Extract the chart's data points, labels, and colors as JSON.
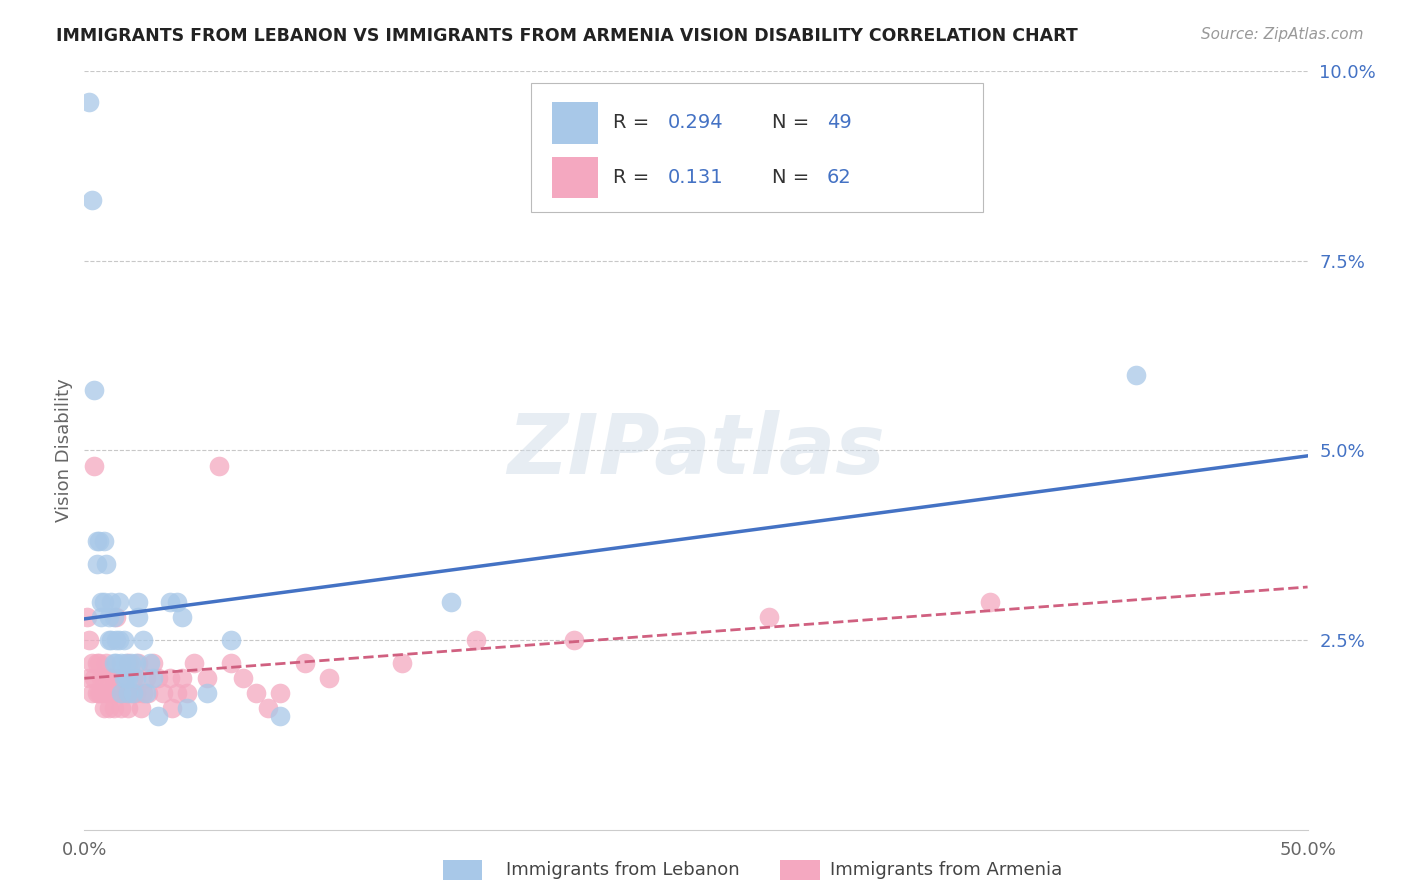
{
  "title": "IMMIGRANTS FROM LEBANON VS IMMIGRANTS FROM ARMENIA VISION DISABILITY CORRELATION CHART",
  "source": "Source: ZipAtlas.com",
  "ylabel": "Vision Disability",
  "xlabel": "",
  "legend_bottom": [
    "Immigrants from Lebanon",
    "Immigrants from Armenia"
  ],
  "R_lebanon": 0.294,
  "N_lebanon": 49,
  "R_armenia": 0.131,
  "N_armenia": 62,
  "xlim": [
    0.0,
    0.5
  ],
  "ylim": [
    0.0,
    0.1
  ],
  "x_ticks": [
    0.0,
    0.1,
    0.2,
    0.3,
    0.4,
    0.5
  ],
  "x_tick_labels": [
    "0.0%",
    "",
    "",
    "",
    "",
    "50.0%"
  ],
  "y_ticks": [
    0.0,
    0.025,
    0.05,
    0.075,
    0.1
  ],
  "y_tick_labels_right": [
    "",
    "2.5%",
    "5.0%",
    "7.5%",
    "10.0%"
  ],
  "color_lebanon": "#a8c8e8",
  "color_armenia": "#f4a8c0",
  "line_color_lebanon": "#4472c4",
  "line_color_armenia": "#d06080",
  "watermark": "ZIPatlas",
  "background_color": "#ffffff",
  "lebanon_scatter": [
    [
      0.002,
      0.096
    ],
    [
      0.003,
      0.083
    ],
    [
      0.004,
      0.058
    ],
    [
      0.005,
      0.038
    ],
    [
      0.005,
      0.035
    ],
    [
      0.006,
      0.038
    ],
    [
      0.007,
      0.03
    ],
    [
      0.007,
      0.028
    ],
    [
      0.008,
      0.03
    ],
    [
      0.008,
      0.038
    ],
    [
      0.009,
      0.035
    ],
    [
      0.01,
      0.025
    ],
    [
      0.01,
      0.028
    ],
    [
      0.011,
      0.03
    ],
    [
      0.011,
      0.025
    ],
    [
      0.012,
      0.022
    ],
    [
      0.012,
      0.028
    ],
    [
      0.013,
      0.025
    ],
    [
      0.013,
      0.022
    ],
    [
      0.014,
      0.025
    ],
    [
      0.014,
      0.03
    ],
    [
      0.015,
      0.022
    ],
    [
      0.015,
      0.018
    ],
    [
      0.016,
      0.02
    ],
    [
      0.016,
      0.025
    ],
    [
      0.017,
      0.022
    ],
    [
      0.017,
      0.02
    ],
    [
      0.018,
      0.018
    ],
    [
      0.018,
      0.02
    ],
    [
      0.019,
      0.022
    ],
    [
      0.02,
      0.018
    ],
    [
      0.021,
      0.02
    ],
    [
      0.021,
      0.022
    ],
    [
      0.022,
      0.03
    ],
    [
      0.022,
      0.028
    ],
    [
      0.024,
      0.025
    ],
    [
      0.025,
      0.018
    ],
    [
      0.027,
      0.022
    ],
    [
      0.028,
      0.02
    ],
    [
      0.03,
      0.015
    ],
    [
      0.035,
      0.03
    ],
    [
      0.038,
      0.03
    ],
    [
      0.04,
      0.028
    ],
    [
      0.042,
      0.016
    ],
    [
      0.05,
      0.018
    ],
    [
      0.06,
      0.025
    ],
    [
      0.08,
      0.015
    ],
    [
      0.15,
      0.03
    ],
    [
      0.43,
      0.06
    ]
  ],
  "armenia_scatter": [
    [
      0.001,
      0.028
    ],
    [
      0.002,
      0.025
    ],
    [
      0.002,
      0.02
    ],
    [
      0.003,
      0.022
    ],
    [
      0.003,
      0.018
    ],
    [
      0.004,
      0.048
    ],
    [
      0.004,
      0.02
    ],
    [
      0.005,
      0.022
    ],
    [
      0.005,
      0.018
    ],
    [
      0.006,
      0.022
    ],
    [
      0.006,
      0.018
    ],
    [
      0.007,
      0.02
    ],
    [
      0.007,
      0.018
    ],
    [
      0.008,
      0.02
    ],
    [
      0.008,
      0.016
    ],
    [
      0.009,
      0.022
    ],
    [
      0.009,
      0.018
    ],
    [
      0.01,
      0.02
    ],
    [
      0.01,
      0.016
    ],
    [
      0.011,
      0.018
    ],
    [
      0.012,
      0.02
    ],
    [
      0.012,
      0.016
    ],
    [
      0.013,
      0.028
    ],
    [
      0.013,
      0.018
    ],
    [
      0.014,
      0.02
    ],
    [
      0.015,
      0.018
    ],
    [
      0.015,
      0.016
    ],
    [
      0.016,
      0.02
    ],
    [
      0.017,
      0.018
    ],
    [
      0.018,
      0.022
    ],
    [
      0.018,
      0.016
    ],
    [
      0.019,
      0.018
    ],
    [
      0.02,
      0.02
    ],
    [
      0.021,
      0.018
    ],
    [
      0.022,
      0.022
    ],
    [
      0.023,
      0.016
    ],
    [
      0.024,
      0.018
    ],
    [
      0.025,
      0.02
    ],
    [
      0.026,
      0.018
    ],
    [
      0.028,
      0.022
    ],
    [
      0.03,
      0.02
    ],
    [
      0.032,
      0.018
    ],
    [
      0.035,
      0.02
    ],
    [
      0.036,
      0.016
    ],
    [
      0.038,
      0.018
    ],
    [
      0.04,
      0.02
    ],
    [
      0.042,
      0.018
    ],
    [
      0.045,
      0.022
    ],
    [
      0.05,
      0.02
    ],
    [
      0.055,
      0.048
    ],
    [
      0.06,
      0.022
    ],
    [
      0.065,
      0.02
    ],
    [
      0.07,
      0.018
    ],
    [
      0.075,
      0.016
    ],
    [
      0.08,
      0.018
    ],
    [
      0.09,
      0.022
    ],
    [
      0.1,
      0.02
    ],
    [
      0.13,
      0.022
    ],
    [
      0.16,
      0.025
    ],
    [
      0.2,
      0.025
    ],
    [
      0.28,
      0.028
    ],
    [
      0.37,
      0.03
    ]
  ]
}
